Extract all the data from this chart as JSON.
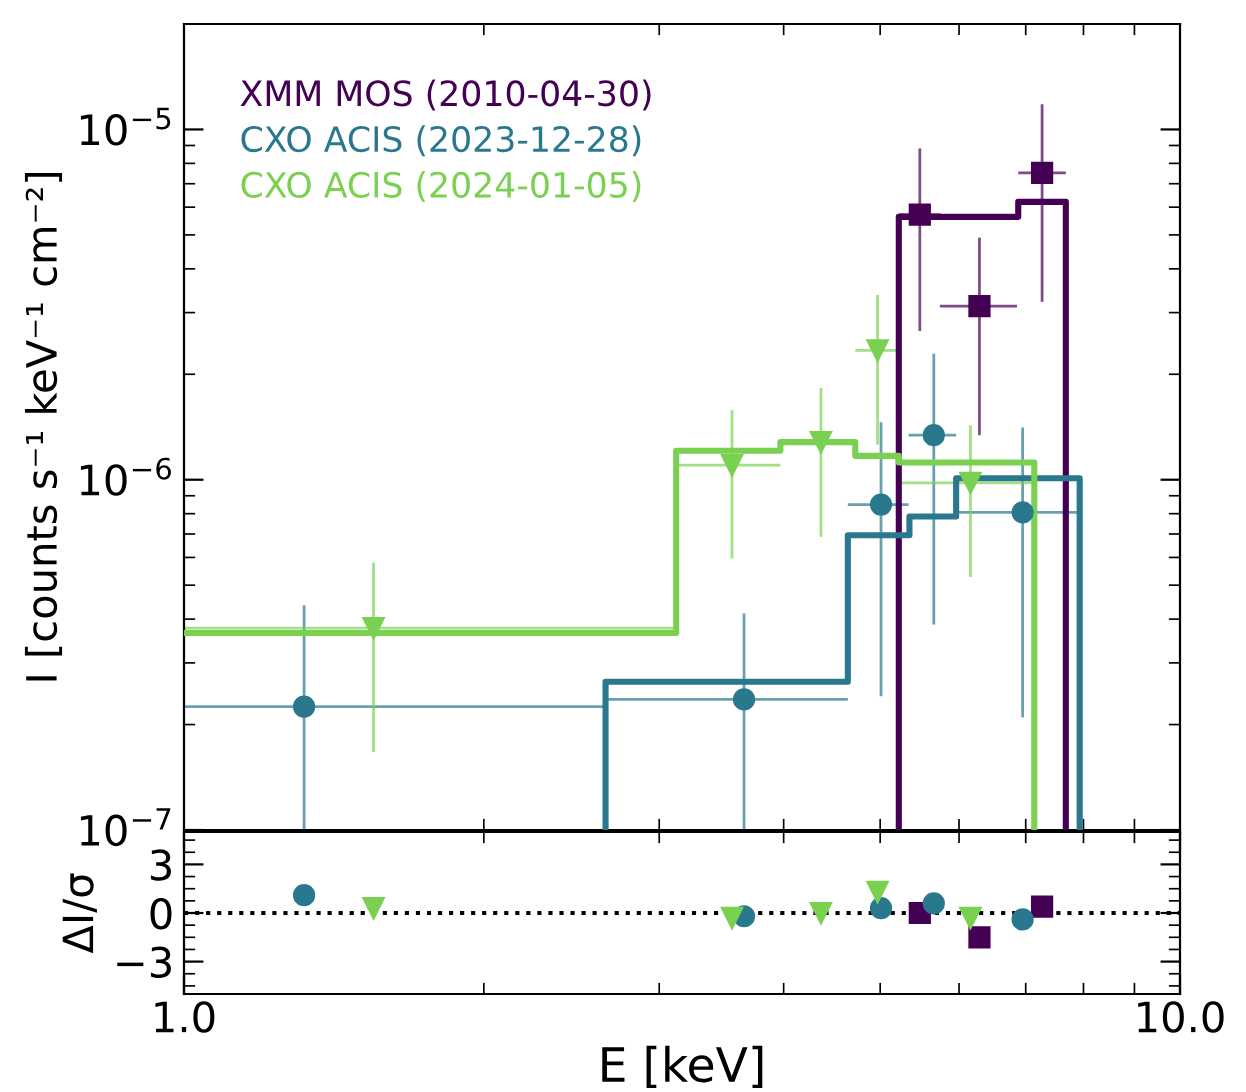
{
  "chart_data": [
    {
      "type": "scatter",
      "ylabel": "I [counts s⁻¹ keV⁻¹ cm⁻²]",
      "log": "xy",
      "xlim": [
        1.0,
        10.0
      ],
      "ylim": [
        1e-07,
        2e-05
      ],
      "yticks": [
        {
          "value": 1e-07,
          "label": "10$^{−7}$"
        },
        {
          "value": 1e-06,
          "label": "10$^{−6}$"
        },
        {
          "value": 1e-05,
          "label": "10$^{−5}$"
        }
      ],
      "tick_labels": "y",
      "legend": "top left",
      "grid": false,
      "series": [
        {
          "type": "step",
          "color": "#440154",
          "x": [
            5.22,
            5.22,
            6.88,
            7.68
          ],
          "values": [
            1e-07,
            5.63e-06,
            6.21e-06,
            1e-07
          ]
        },
        {
          "type": "step",
          "color": "#2a788e",
          "x": [
            2.65,
            2.65,
            4.64,
            5.35,
            5.96,
            7.93
          ],
          "values": [
            1e-07,
            2.65e-07,
            6.94e-07,
            7.85e-07,
            1.01e-06,
            1e-07
          ]
        },
        {
          "type": "step",
          "color": "#7ad151",
          "x": [
            1.0,
            3.12,
            3.97,
            4.72,
            5.22,
            7.14
          ],
          "values": [
            3.65e-07,
            1.21e-06,
            1.28e-06,
            1.17e-06,
            1.12e-06,
            1e-07
          ]
        },
        {
          "type": "scatter",
          "name": "XMM MOS (2010-04-30)",
          "color": "#440154",
          "marker": "square",
          "x": [
            5.48,
            6.29,
            7.27
          ],
          "values": [
            5.71e-06,
            3.13e-06,
            7.52e-06
          ],
          "errors": [
            [
              2.66e-06,
              8.83e-06
            ],
            [
              1.34e-06,
              4.91e-06
            ],
            [
              3.22e-06,
              1.18e-05
            ]
          ],
          "xerrors": [
            [
              5.22,
              5.75
            ],
            [
              5.74,
              6.86
            ],
            [
              6.88,
              7.68
            ]
          ]
        },
        {
          "type": "scatter",
          "name": "CXO ACIS (2023-12-28)",
          "color": "#2a788e",
          "marker": "circle",
          "x": [
            1.32,
            3.65,
            5.01,
            5.66,
            6.95
          ],
          "values": [
            2.25e-07,
            2.36e-07,
            8.49e-07,
            1.34e-06,
            8.07e-07
          ],
          "errors": [
            [
              1e-07,
              4.38e-07
            ],
            [
              1e-07,
              4.15e-07
            ],
            [
              2.41e-07,
              1.46e-06
            ],
            [
              3.86e-07,
              2.29e-06
            ],
            [
              2.1e-07,
              1.41e-06
            ]
          ],
          "xerrors": [
            [
              1.0,
              2.65
            ],
            [
              2.65,
              4.64
            ],
            [
              4.64,
              5.34
            ],
            [
              5.34,
              5.96
            ],
            [
              5.96,
              7.93
            ]
          ]
        },
        {
          "type": "scatter",
          "name": "CXO ACIS (2024-01-05)",
          "color": "#7ad151",
          "marker": "triangle",
          "x": [
            1.55,
            3.55,
            4.36,
            4.97,
            6.16
          ],
          "values": [
            3.77e-07,
            1.1e-06,
            1.28e-06,
            2.34e-06,
            9.8e-07
          ],
          "errors": [
            [
              1.67e-07,
              5.8e-07
            ],
            [
              5.96e-07,
              1.58e-06
            ],
            [
              6.87e-07,
              1.83e-06
            ],
            [
              1.26e-06,
              3.37e-06
            ],
            [
              5.28e-07,
              1.43e-06
            ]
          ],
          "xerrors": [
            [
              1.0,
              3.12
            ],
            [
              3.12,
              3.97
            ],
            [
              3.97,
              4.72
            ],
            [
              4.72,
              5.22
            ],
            [
              5.22,
              7.14
            ]
          ]
        }
      ]
    },
    {
      "type": "scatter",
      "xlabel": "E [keV]",
      "ylabel": "ΔI/σ",
      "log": "x",
      "xlim": [
        1.0,
        10.0
      ],
      "xticks": [
        {
          "value": 1.0,
          "label": "1.0"
        },
        {
          "value": 10.0,
          "label": "10.0"
        }
      ],
      "ylim": [
        -5,
        5
      ],
      "yticks": [
        {
          "value": -3,
          "label": "−3"
        },
        0,
        3
      ],
      "grid": false,
      "ref_lines": [
        {
          "axis": "y",
          "value": 0,
          "color": "#000000",
          "line_style": "dotted"
        }
      ],
      "series": [
        {
          "color": "#440154",
          "marker": "square",
          "x": [
            5.48,
            6.29,
            7.27
          ],
          "values": [
            0.0,
            -1.5,
            0.4
          ]
        },
        {
          "color": "#2a788e",
          "marker": "circle",
          "x": [
            1.32,
            3.65,
            5.01,
            5.66,
            6.95
          ],
          "values": [
            1.1,
            -0.2,
            0.3,
            0.6,
            -0.4
          ]
        },
        {
          "color": "#7ad151",
          "marker": "triangle",
          "x": [
            1.55,
            3.55,
            4.36,
            4.97,
            6.16
          ],
          "values": [
            0.3,
            -0.3,
            0.0,
            1.3,
            -0.3
          ]
        }
      ]
    }
  ]
}
